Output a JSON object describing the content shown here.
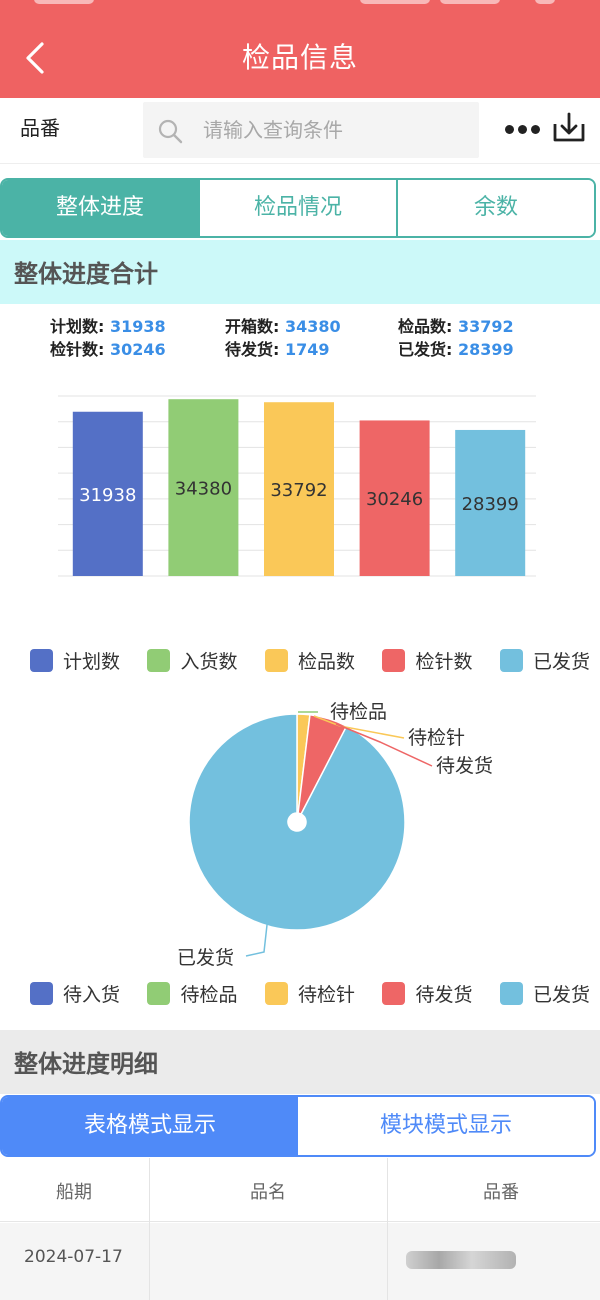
{
  "header": {
    "title": "检品信息"
  },
  "search": {
    "label": "品番",
    "placeholder": "请输入查询条件"
  },
  "tabs": [
    {
      "label": "整体进度",
      "active": true
    },
    {
      "label": "检品情况",
      "active": false
    },
    {
      "label": "余数",
      "active": false
    }
  ],
  "summary": {
    "title": "整体进度合计",
    "stats": [
      {
        "label": "计划数:",
        "value": "31938"
      },
      {
        "label": "开箱数:",
        "value": "34380"
      },
      {
        "label": "检品数:",
        "value": "33792"
      },
      {
        "label": "检针数:",
        "value": "30246"
      },
      {
        "label": "待发货:",
        "value": "1749"
      },
      {
        "label": "已发货:",
        "value": "28399"
      }
    ]
  },
  "chart_data": [
    {
      "type": "bar",
      "categories": [
        "计划数",
        "入货数",
        "检品数",
        "检针数",
        "已发货"
      ],
      "values": [
        31938,
        34380,
        33792,
        30246,
        28399
      ],
      "ylim": [
        0,
        35000
      ],
      "grid": true,
      "colors": [
        "#5470c6",
        "#91cc75",
        "#fac858",
        "#ee6666",
        "#73c0de"
      ],
      "legend": [
        "计划数",
        "入货数",
        "检品数",
        "检针数",
        "已发货"
      ],
      "legend_position": "bottom"
    },
    {
      "type": "pie",
      "donut": true,
      "categories": [
        "待入货",
        "待检品",
        "待检针",
        "待发货",
        "已发货"
      ],
      "values": [
        0,
        0,
        588,
        1749,
        28399
      ],
      "colors": [
        "#5470c6",
        "#91cc75",
        "#fac858",
        "#ee6666",
        "#73c0de"
      ],
      "slice_labels": [
        {
          "text": "待检品",
          "color": "#91cc75"
        },
        {
          "text": "待检针",
          "color": "#fac858"
        },
        {
          "text": "待发货",
          "color": "#ee6666"
        },
        {
          "text": "已发货",
          "color": "#73c0de"
        }
      ],
      "legend": [
        "待入货",
        "待检品",
        "待检针",
        "待发货",
        "已发货"
      ],
      "legend_position": "bottom"
    }
  ],
  "detail": {
    "title": "整体进度明细",
    "modes": [
      {
        "label": "表格模式显示",
        "active": true
      },
      {
        "label": "模块模式显示",
        "active": false
      }
    ],
    "columns": [
      "船期",
      "品名",
      "品番"
    ],
    "rows": [
      {
        "date": "2024-07-17"
      }
    ]
  }
}
